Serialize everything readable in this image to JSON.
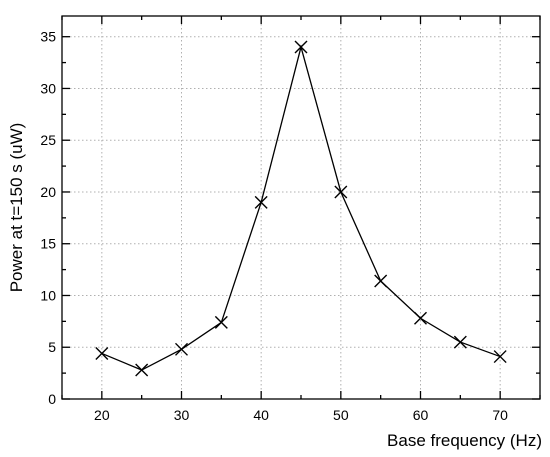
{
  "chart_data": {
    "type": "line",
    "title": "",
    "xlabel": "Base frequency (Hz)",
    "ylabel": "Power at t=150 s (uW)",
    "xlim": [
      15,
      75
    ],
    "ylim": [
      0,
      37
    ],
    "xticks": [
      20,
      30,
      40,
      50,
      60,
      70
    ],
    "yticks": [
      0,
      5,
      10,
      15,
      20,
      25,
      30,
      35
    ],
    "x_minor_step": 5,
    "y_minor_step": 2.5,
    "grid": true,
    "marker": "x",
    "line_color": "#000000",
    "series": [
      {
        "x": [
          20,
          25,
          30,
          35,
          40,
          45,
          50,
          55,
          60,
          65,
          70
        ],
        "y": [
          4.4,
          2.8,
          4.8,
          7.4,
          19.0,
          34.0,
          20.0,
          11.4,
          7.8,
          5.5,
          4.1
        ]
      }
    ]
  }
}
